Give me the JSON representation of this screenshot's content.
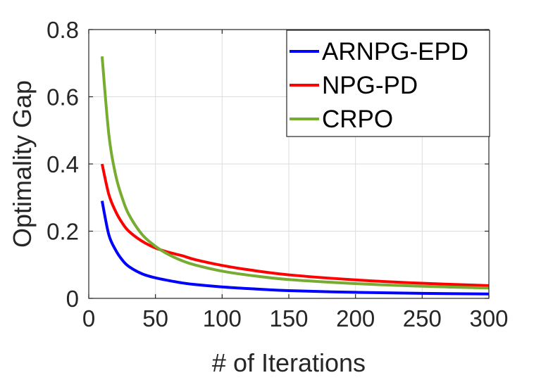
{
  "chart_data": {
    "type": "line",
    "title": "",
    "xlabel": "# of Iterations",
    "ylabel": "Optimality Gap",
    "xlim": [
      0,
      300
    ],
    "ylim": [
      0,
      0.8
    ],
    "xticks": [
      0,
      50,
      100,
      150,
      200,
      250,
      300
    ],
    "yticks": [
      0,
      0.2,
      0.4,
      0.6,
      0.8
    ],
    "xtick_labels": [
      "0",
      "50",
      "100",
      "150",
      "200",
      "250",
      "300"
    ],
    "ytick_labels": [
      "0",
      "0.2",
      "0.4",
      "0.6",
      "0.8"
    ],
    "grid": true,
    "legend_position": "top-right",
    "series": [
      {
        "name": "ARNPG-EPD",
        "color": "#0000ff",
        "x": [
          10,
          15,
          20,
          25,
          30,
          40,
          50,
          60,
          70,
          80,
          100,
          120,
          150,
          200,
          250,
          300
        ],
        "y": [
          0.29,
          0.19,
          0.145,
          0.115,
          0.095,
          0.073,
          0.061,
          0.053,
          0.046,
          0.041,
          0.034,
          0.029,
          0.023,
          0.018,
          0.015,
          0.013
        ]
      },
      {
        "name": "NPG-PD",
        "color": "#ff0000",
        "x": [
          10,
          15,
          20,
          25,
          30,
          40,
          50,
          60,
          70,
          80,
          100,
          120,
          150,
          200,
          250,
          300
        ],
        "y": [
          0.4,
          0.31,
          0.26,
          0.225,
          0.2,
          0.17,
          0.15,
          0.137,
          0.127,
          0.115,
          0.098,
          0.085,
          0.07,
          0.055,
          0.045,
          0.038
        ]
      },
      {
        "name": "CRPO",
        "color": "#77ac30",
        "x": [
          10,
          15,
          20,
          25,
          30,
          40,
          50,
          60,
          70,
          80,
          100,
          120,
          150,
          200,
          250,
          300
        ],
        "y": [
          0.72,
          0.49,
          0.37,
          0.3,
          0.25,
          0.19,
          0.155,
          0.13,
          0.112,
          0.099,
          0.081,
          0.069,
          0.056,
          0.044,
          0.036,
          0.031
        ]
      }
    ]
  }
}
